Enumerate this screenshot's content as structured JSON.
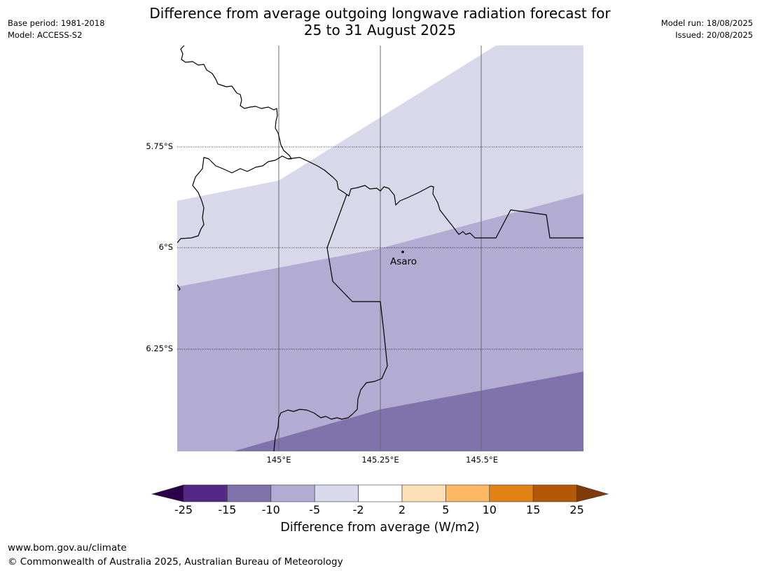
{
  "header": {
    "base_period": "Base period: 1981-2018",
    "model": "Model: ACCESS-S2",
    "model_run": "Model run: 18/08/2025",
    "issued": "Issued: 20/08/2025"
  },
  "title": {
    "line1": "Difference from average outgoing longwave radiation forecast for",
    "line2": "25 to 31 August 2025"
  },
  "map": {
    "lat_labels": [
      "5.75°S",
      "6°S",
      "6.25°S"
    ],
    "lon_labels": [
      "145°E",
      "145.25°E",
      "145.5°E"
    ],
    "place": {
      "name": "Asaro"
    },
    "fill_colors": {
      "-5_to_-2": "#d8d8ea",
      "-10_to_-5": "#b2abd2",
      "-15_to_-10": "#8073ac"
    }
  },
  "colorbar": {
    "ticks": [
      "-25",
      "-15",
      "-10",
      "-5",
      "-2",
      "2",
      "5",
      "10",
      "15",
      "25"
    ],
    "colors": [
      "#2d004b",
      "#542788",
      "#8073ac",
      "#b2abd2",
      "#d8daeb",
      "#ffffff",
      "#fee0b6",
      "#fdb863",
      "#e08214",
      "#b35806",
      "#7f3b08"
    ],
    "label": "Difference from average (W/m2)"
  },
  "footer": {
    "url": "www.bom.gov.au/climate",
    "copyright": "© Commonwealth of Australia 2025, Australian Bureau of Meteorology"
  }
}
